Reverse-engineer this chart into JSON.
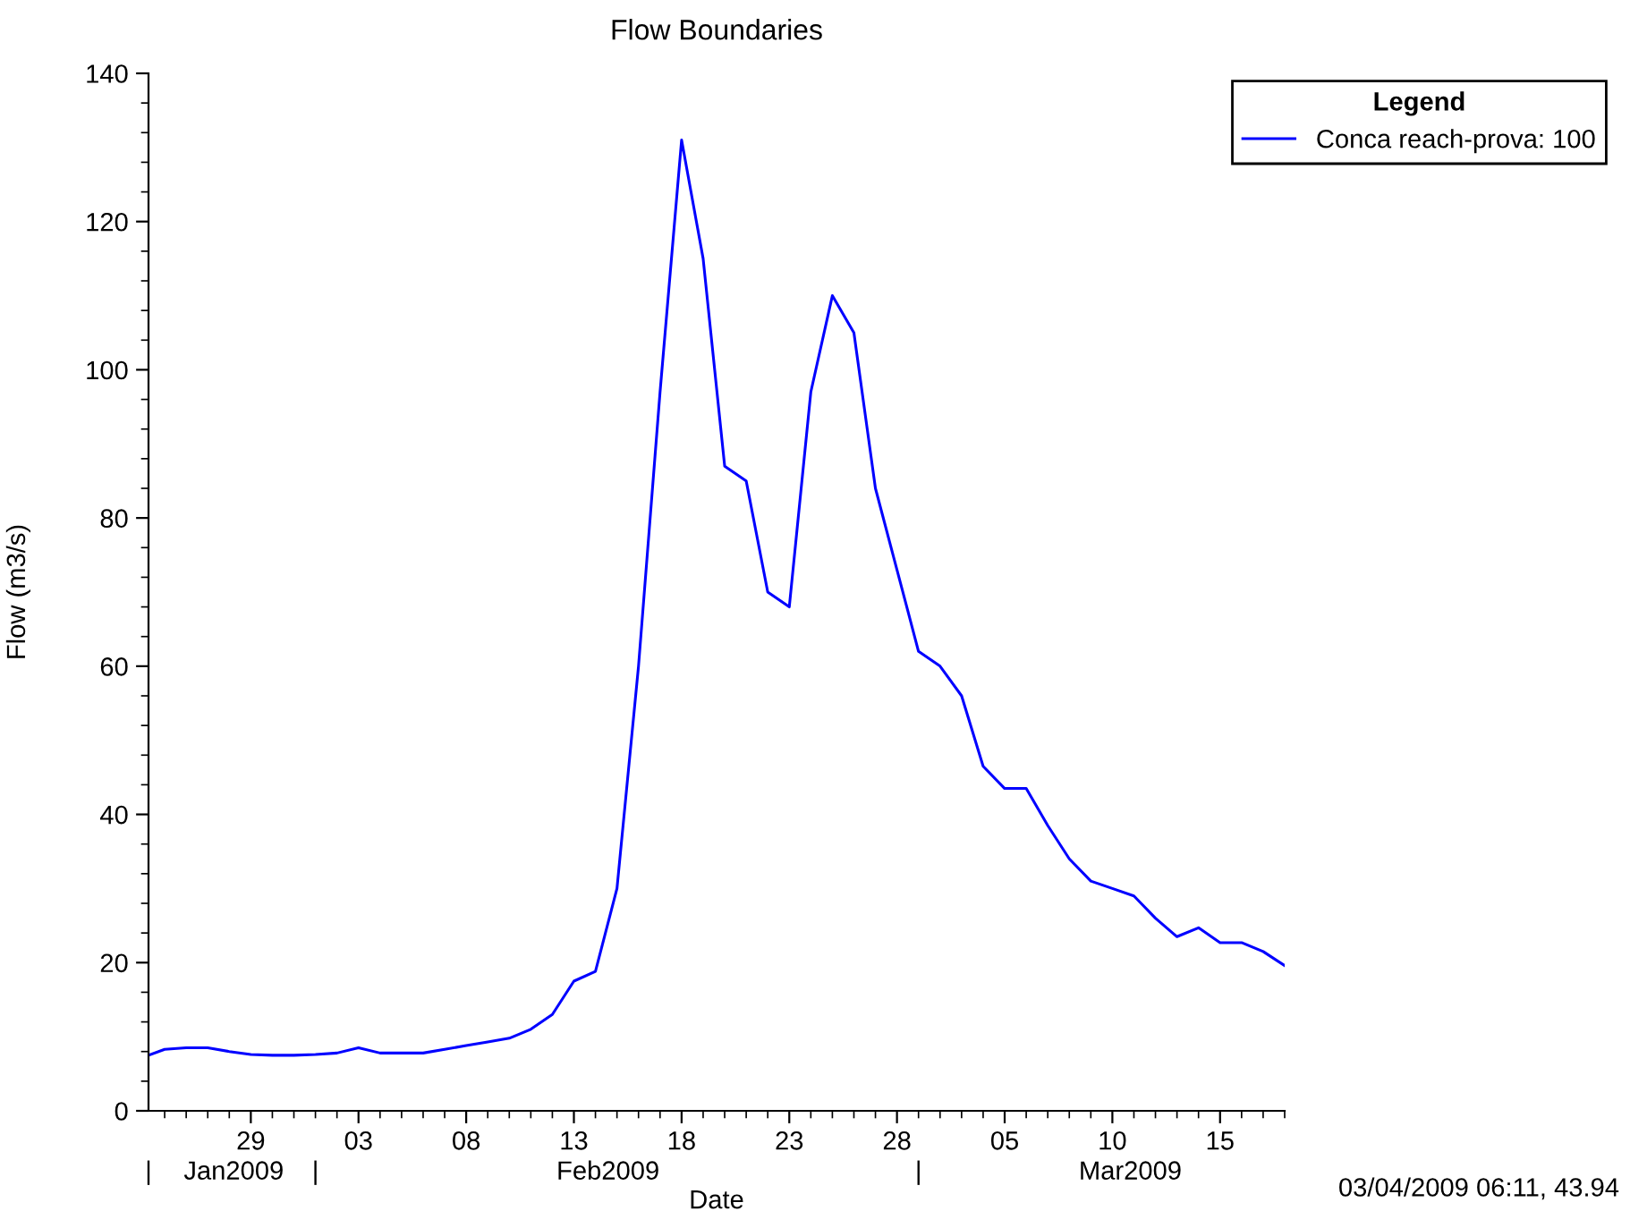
{
  "chart_data": {
    "type": "line",
    "title": "Flow Boundaries",
    "xlabel": "Date",
    "ylabel": "Flow (m3/s)",
    "x": [
      "2009-01-24T06:00",
      "2009-01-25",
      "2009-01-26",
      "2009-01-27",
      "2009-01-28",
      "2009-01-29",
      "2009-01-30",
      "2009-01-31",
      "2009-02-01",
      "2009-02-02",
      "2009-02-03",
      "2009-02-04",
      "2009-02-05",
      "2009-02-06",
      "2009-02-07",
      "2009-02-08",
      "2009-02-09",
      "2009-02-10",
      "2009-02-11",
      "2009-02-12",
      "2009-02-13",
      "2009-02-14",
      "2009-02-15",
      "2009-02-16",
      "2009-02-17",
      "2009-02-18",
      "2009-02-19",
      "2009-02-20",
      "2009-02-21",
      "2009-02-22",
      "2009-02-23",
      "2009-02-24",
      "2009-02-25",
      "2009-02-26",
      "2009-02-27",
      "2009-02-28",
      "2009-03-01",
      "2009-03-02",
      "2009-03-03",
      "2009-03-04",
      "2009-03-05",
      "2009-03-06",
      "2009-03-07",
      "2009-03-08",
      "2009-03-09",
      "2009-03-10",
      "2009-03-11",
      "2009-03-12",
      "2009-03-13",
      "2009-03-14",
      "2009-03-15",
      "2009-03-16",
      "2009-03-17",
      "2009-03-18"
    ],
    "series": [
      {
        "name": "Conca reach-prova: 100",
        "color": "#0000ff",
        "values": [
          7.5,
          8.3,
          8.5,
          8.5,
          8.0,
          7.6,
          7.5,
          7.5,
          7.6,
          7.8,
          8.5,
          7.8,
          7.8,
          7.8,
          8.3,
          8.8,
          9.3,
          9.8,
          11.0,
          13.0,
          17.5,
          18.8,
          30,
          60,
          97,
          131,
          115,
          87,
          85,
          70,
          68,
          97,
          110,
          105,
          84,
          73,
          62,
          60,
          56,
          46.5,
          43.5,
          43.5,
          38.5,
          34,
          31,
          30,
          29,
          26,
          23.5,
          24.7,
          22.7,
          22.7,
          21.5,
          19.6
        ]
      }
    ],
    "xlim": [
      "2009-01-24T06:00",
      "2009-03-18"
    ],
    "xticks": [
      {
        "value": "2009-01-29",
        "label": "29"
      },
      {
        "value": "2009-02-03",
        "label": "03"
      },
      {
        "value": "2009-02-08",
        "label": "08"
      },
      {
        "value": "2009-02-13",
        "label": "13"
      },
      {
        "value": "2009-02-18",
        "label": "18"
      },
      {
        "value": "2009-02-23",
        "label": "23"
      },
      {
        "value": "2009-02-28",
        "label": "28"
      },
      {
        "value": "2009-03-05",
        "label": "05"
      },
      {
        "value": "2009-03-10",
        "label": "10"
      },
      {
        "value": "2009-03-15",
        "label": "15"
      }
    ],
    "x2ticks": [
      {
        "value": "2009-01-24T06:00",
        "label": "|"
      },
      {
        "value": "2009-01-28T05:00",
        "label": "Jan2009"
      },
      {
        "value": "2009-02-01",
        "label": "|"
      },
      {
        "value": "2009-02-14T14:00",
        "label": "Feb2009"
      },
      {
        "value": "2009-03-01",
        "label": "|"
      },
      {
        "value": "2009-03-10T20:00",
        "label": "Mar2009"
      }
    ],
    "x2lim": [
      "2009-01-24T06:00",
      "2009-03-18"
    ],
    "ylim": [
      0,
      140
    ],
    "yticks": [
      0,
      20,
      40,
      60,
      80,
      100,
      120,
      140
    ],
    "grid": false,
    "legend": "top right",
    "legend_title": "Legend",
    "marker": "none",
    "line_style": "solid",
    "annotations": [
      "03/04/2009 06:11, 43.94"
    ]
  }
}
